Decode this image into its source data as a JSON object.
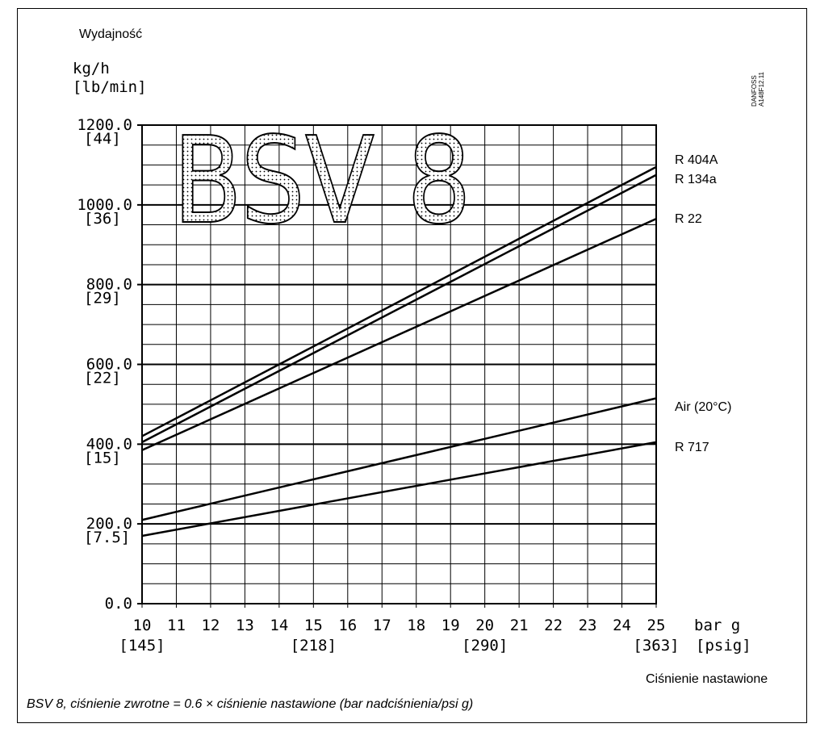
{
  "header": {
    "title_line1": "Wydajność",
    "y_unit_primary": "kg/h",
    "y_unit_secondary": "[lb/min]",
    "code_line1": "DANFOSS",
    "code_line2": "A148F12.11"
  },
  "footer": {
    "x_axis_title": "Ciśnienie nastawione",
    "caption": "BSV 8, ciśnienie zwrotne = 0.6 × ciśnienie nastawione (bar nadciśnienia/psi g)"
  },
  "chart_data": {
    "type": "line",
    "watermark": "BSV 8",
    "xlim": [
      10,
      25
    ],
    "ylim": [
      0,
      1200
    ],
    "x_ticks": [
      10,
      11,
      12,
      13,
      14,
      15,
      16,
      17,
      18,
      19,
      20,
      21,
      22,
      23,
      24,
      25
    ],
    "x_unit": "bar g",
    "x_secondary_ticks": [
      {
        "x": 10,
        "label": "[145]"
      },
      {
        "x": 15,
        "label": "[218]"
      },
      {
        "x": 20,
        "label": "[290]"
      },
      {
        "x": 25,
        "label": "[363]"
      }
    ],
    "x_secondary_unit": "[psig]",
    "y_ticks": [
      {
        "y": 0,
        "label": "0.0",
        "sub": ""
      },
      {
        "y": 200,
        "label": "200.0",
        "sub": "[7.5]"
      },
      {
        "y": 400,
        "label": "400.0",
        "sub": "[15]"
      },
      {
        "y": 600,
        "label": "600.0",
        "sub": "[22]"
      },
      {
        "y": 800,
        "label": "800.0",
        "sub": "[29]"
      },
      {
        "y": 1000,
        "label": "1000.0",
        "sub": "[36]"
      },
      {
        "y": 1200,
        "label": "1200.0",
        "sub": "[44]"
      }
    ],
    "grid": true,
    "series": [
      {
        "name": "R 404A",
        "x": [
          10,
          25
        ],
        "y": [
          420,
          1095
        ]
      },
      {
        "name": "R 134a",
        "x": [
          10,
          25
        ],
        "y": [
          405,
          1075
        ]
      },
      {
        "name": "R 22",
        "x": [
          10,
          25
        ],
        "y": [
          385,
          965
        ]
      },
      {
        "name": "Air (20°C)",
        "x": [
          10,
          25
        ],
        "y": [
          210,
          515
        ]
      },
      {
        "name": "R 717",
        "x": [
          10,
          25
        ],
        "y": [
          170,
          405
        ]
      }
    ]
  }
}
